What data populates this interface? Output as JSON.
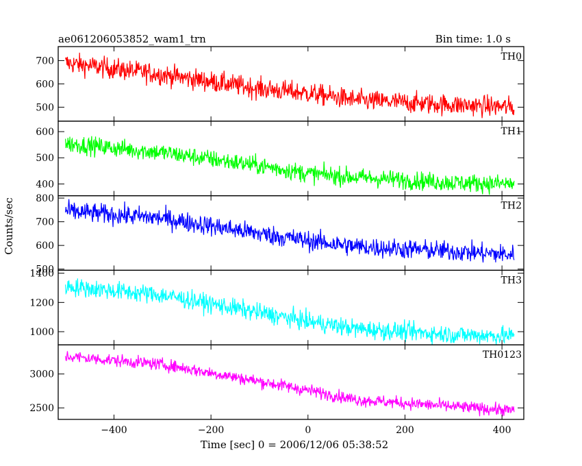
{
  "header": {
    "title": "ae061206053852_wam1_trn",
    "bin_time": "Bin time: 1.0 s"
  },
  "axes": {
    "ylabel": "Counts/sec",
    "xlabel": "Time [sec] 0 = 2006/12/06 05:38:52"
  },
  "chart_data": {
    "type": "line",
    "title": "ae061206053852_wam1_trn",
    "xlabel": "Time [sec] 0 = 2006/12/06 05:38:52",
    "ylabel": "Counts/sec",
    "xlim": [
      -515,
      445
    ],
    "x_ticks": [
      -400,
      -200,
      0,
      200,
      400
    ],
    "x_range": [
      -500,
      425
    ],
    "x_step": 1,
    "grid": false,
    "panels": [
      {
        "name": "TH0",
        "color": "#ff0000",
        "ylim": [
          440,
          760
        ],
        "yticks": [
          500,
          600,
          700
        ],
        "trend": [
          [
            -500,
            690
          ],
          [
            -300,
            640
          ],
          [
            -100,
            580
          ],
          [
            0,
            560
          ],
          [
            100,
            530
          ],
          [
            300,
            510
          ],
          [
            425,
            500
          ]
        ],
        "noise": 32
      },
      {
        "name": "TH1",
        "color": "#00ff00",
        "ylim": [
          355,
          640
        ],
        "yticks": [
          400,
          500,
          600
        ],
        "trend": [
          [
            -500,
            555
          ],
          [
            -300,
            520
          ],
          [
            -100,
            470
          ],
          [
            0,
            440
          ],
          [
            100,
            425
          ],
          [
            300,
            405
          ],
          [
            425,
            400
          ]
        ],
        "noise": 25
      },
      {
        "name": "TH2",
        "color": "#0000ff",
        "ylim": [
          495,
          810
        ],
        "yticks": [
          500,
          600,
          700,
          800
        ],
        "trend": [
          [
            -500,
            745
          ],
          [
            -300,
            715
          ],
          [
            -100,
            650
          ],
          [
            0,
            620
          ],
          [
            100,
            595
          ],
          [
            300,
            575
          ],
          [
            425,
            560
          ]
        ],
        "noise": 30
      },
      {
        "name": "TH3",
        "color": "#00ffff",
        "ylim": [
          910,
          1420
        ],
        "yticks": [
          1000,
          1200,
          1400
        ],
        "trend": [
          [
            -500,
            1310
          ],
          [
            -300,
            1250
          ],
          [
            -100,
            1130
          ],
          [
            0,
            1070
          ],
          [
            100,
            1020
          ],
          [
            300,
            980
          ],
          [
            425,
            970
          ]
        ],
        "noise": 45
      },
      {
        "name": "TH0123",
        "color": "#ff00ff",
        "ylim": [
          2330,
          3430
        ],
        "yticks": [
          2500,
          3000
        ],
        "trend": [
          [
            -500,
            3260
          ],
          [
            -300,
            3140
          ],
          [
            -100,
            2890
          ],
          [
            0,
            2760
          ],
          [
            100,
            2620
          ],
          [
            300,
            2520
          ],
          [
            425,
            2460
          ]
        ],
        "noise": 65
      }
    ]
  }
}
